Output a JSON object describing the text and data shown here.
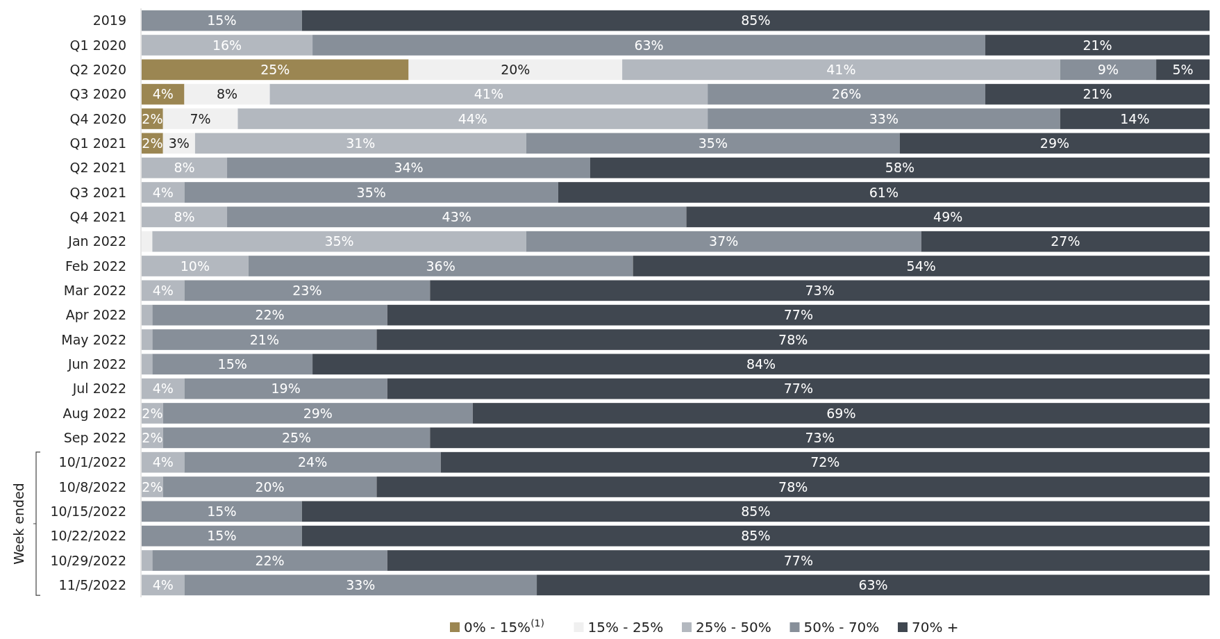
{
  "chart_data": {
    "type": "bar",
    "orientation": "horizontal",
    "stacked": true,
    "legend": "bottom",
    "annotations": [
      "Week ended"
    ],
    "categories": [
      "2019",
      "Q1 2020",
      "Q2 2020",
      "Q3 2020",
      "Q4 2020",
      "Q1 2021",
      "Q2 2021",
      "Q3 2021",
      "Q4 2021",
      "Jan 2022",
      "Feb 2022",
      "Mar 2022",
      "Apr 2022",
      "May 2022",
      "Jun 2022",
      "Jul 2022",
      "Aug 2022",
      "Sep 2022",
      "10/1/2022",
      "10/8/2022",
      "10/15/2022",
      "10/22/2022",
      "10/29/2022",
      "11/5/2022"
    ],
    "series": [
      {
        "name": "0% - 15%$^{(1)}$",
        "color": "#9b8652",
        "values": [
          null,
          null,
          25,
          4,
          2,
          2,
          null,
          null,
          null,
          null,
          null,
          null,
          null,
          null,
          null,
          null,
          null,
          null,
          null,
          null,
          null,
          null,
          null,
          null
        ],
        "value_labels": [
          null,
          null,
          "25%",
          "4%",
          "2%",
          "2%",
          null,
          null,
          null,
          null,
          null,
          null,
          null,
          null,
          null,
          null,
          null,
          null,
          null,
          null,
          null,
          null,
          null,
          null
        ]
      },
      {
        "name": "15% - 25%",
        "color": "#f0f0f0",
        "values": [
          null,
          null,
          20,
          8,
          7,
          3,
          null,
          null,
          null,
          1,
          null,
          null,
          null,
          null,
          null,
          null,
          null,
          null,
          null,
          null,
          null,
          null,
          null,
          null
        ],
        "value_labels": [
          null,
          null,
          "20%",
          "8%",
          "7%",
          "3%",
          null,
          null,
          null,
          null,
          null,
          null,
          null,
          null,
          null,
          null,
          null,
          null,
          null,
          null,
          null,
          null,
          null,
          null
        ]
      },
      {
        "name": "25% - 50%",
        "color": "#b3b8bf",
        "values": [
          null,
          16,
          41,
          41,
          44,
          31,
          8,
          4,
          8,
          35,
          10,
          4,
          1,
          1,
          1,
          4,
          2,
          2,
          4,
          2,
          null,
          null,
          1,
          4
        ],
        "value_labels": [
          null,
          "16%",
          "41%",
          "41%",
          "44%",
          "31%",
          "8%",
          "4%",
          "8%",
          "35%",
          "10%",
          "4%",
          null,
          null,
          null,
          "4%",
          "2%",
          "2%",
          "4%",
          "2%",
          null,
          null,
          null,
          "4%"
        ]
      },
      {
        "name": "50% - 70%",
        "color": "#878f99",
        "values": [
          15,
          63,
          9,
          26,
          33,
          35,
          34,
          35,
          43,
          37,
          36,
          23,
          22,
          21,
          15,
          19,
          29,
          25,
          24,
          20,
          15,
          15,
          22,
          33
        ],
        "value_labels": [
          "15%",
          "63%",
          "9%",
          "26%",
          "33%",
          "35%",
          "34%",
          "35%",
          "43%",
          "37%",
          "36%",
          "23%",
          "22%",
          "21%",
          "15%",
          "19%",
          "29%",
          "25%",
          "24%",
          "20%",
          "15%",
          "15%",
          "22%",
          "33%"
        ]
      },
      {
        "name": "70% +",
        "color": "#404750",
        "values": [
          85,
          21,
          5,
          21,
          14,
          29,
          58,
          61,
          49,
          27,
          54,
          73,
          77,
          78,
          84,
          77,
          69,
          73,
          72,
          78,
          85,
          85,
          77,
          63
        ],
        "value_labels": [
          "85%",
          "21%",
          "5%",
          "21%",
          "14%",
          "29%",
          "58%",
          "61%",
          "49%",
          "27%",
          "54%",
          "73%",
          "77%",
          "78%",
          "84%",
          "77%",
          "69%",
          "73%",
          "72%",
          "78%",
          "85%",
          "85%",
          "77%",
          "63%"
        ]
      }
    ]
  }
}
